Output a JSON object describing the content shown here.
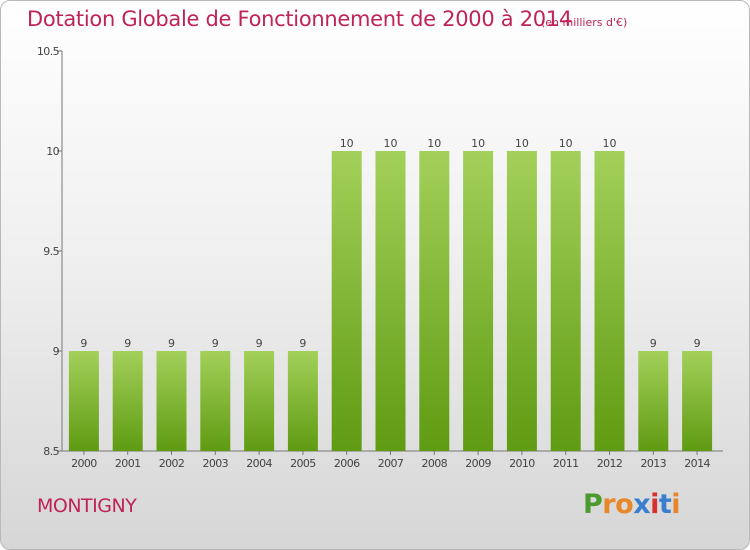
{
  "page": {
    "title": "Dotation Globale de Fonctionnement de 2000 à 2014",
    "unit": "(en milliers d'€)",
    "city": "MONTIGNY",
    "logo": [
      "P",
      "r",
      "o",
      "x",
      "i",
      "t",
      "i"
    ]
  },
  "colors": {
    "title": "#c0235a",
    "bar_top": "#a3d05a",
    "bar_bottom": "#5f9b12",
    "logo": [
      "#4a9a2e",
      "#e8862a",
      "#e8862a",
      "#3a7fcf",
      "#d92f2f",
      "#3a7fcf",
      "#e8862a"
    ]
  },
  "chart_data": {
    "type": "bar",
    "title": "Dotation Globale de Fonctionnement de 2000 à 2014",
    "subtitle": "(en milliers d'€)",
    "categories": [
      "2000",
      "2001",
      "2002",
      "2003",
      "2004",
      "2005",
      "2006",
      "2007",
      "2008",
      "2009",
      "2010",
      "2011",
      "2012",
      "2013",
      "2014"
    ],
    "values": [
      9,
      9,
      9,
      9,
      9,
      9,
      10,
      10,
      10,
      10,
      10,
      10,
      10,
      9,
      9
    ],
    "ylim": [
      8.5,
      10.5
    ],
    "yticks": [
      8.5,
      9,
      9.5,
      10,
      10.5
    ],
    "ytick_labels": [
      "8.5",
      "9",
      "9.5",
      "10",
      "10.5"
    ],
    "grid": false,
    "legend": "none"
  }
}
